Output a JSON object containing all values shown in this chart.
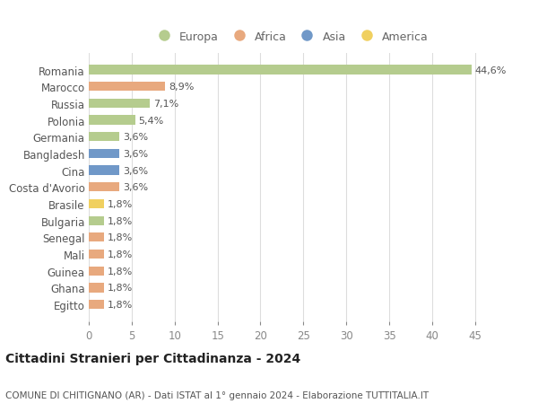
{
  "countries": [
    "Romania",
    "Marocco",
    "Russia",
    "Polonia",
    "Germania",
    "Bangladesh",
    "Cina",
    "Costa d'Avorio",
    "Brasile",
    "Bulgaria",
    "Senegal",
    "Mali",
    "Guinea",
    "Ghana",
    "Egitto"
  ],
  "values": [
    44.6,
    8.9,
    7.1,
    5.4,
    3.6,
    3.6,
    3.6,
    3.6,
    1.8,
    1.8,
    1.8,
    1.8,
    1.8,
    1.8,
    1.8
  ],
  "labels": [
    "44,6%",
    "8,9%",
    "7,1%",
    "5,4%",
    "3,6%",
    "3,6%",
    "3,6%",
    "3,6%",
    "1,8%",
    "1,8%",
    "1,8%",
    "1,8%",
    "1,8%",
    "1,8%",
    "1,8%"
  ],
  "continents": [
    "Europa",
    "Africa",
    "Europa",
    "Europa",
    "Europa",
    "Asia",
    "Asia",
    "Africa",
    "America",
    "Europa",
    "Africa",
    "Africa",
    "Africa",
    "Africa",
    "Africa"
  ],
  "continent_colors": {
    "Europa": "#b5cc8e",
    "Africa": "#e8a97e",
    "Asia": "#7098c8",
    "America": "#f0d060"
  },
  "legend_order": [
    "Europa",
    "Africa",
    "Asia",
    "America"
  ],
  "background_color": "#ffffff",
  "grid_color": "#dddddd",
  "title": "Cittadini Stranieri per Cittadinanza - 2024",
  "subtitle": "COMUNE DI CHITIGNANO (AR) - Dati ISTAT al 1° gennaio 2024 - Elaborazione TUTTITALIA.IT",
  "xlim": [
    0,
    47
  ],
  "xticks": [
    0,
    5,
    10,
    15,
    20,
    25,
    30,
    35,
    40,
    45
  ],
  "bar_height": 0.55,
  "label_fontsize": 8,
  "ytick_fontsize": 8.5,
  "xtick_fontsize": 8.5,
  "legend_fontsize": 9,
  "title_fontsize": 10,
  "subtitle_fontsize": 7.5
}
